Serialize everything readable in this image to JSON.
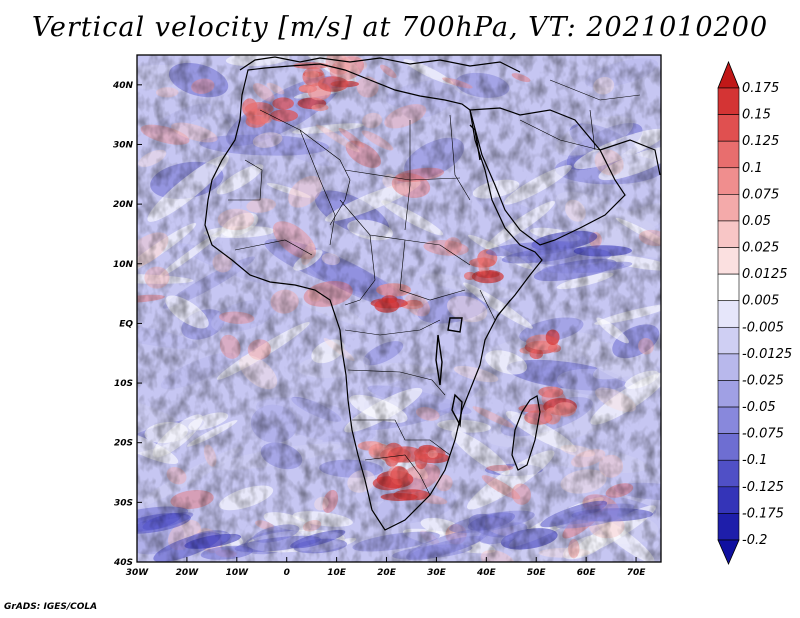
{
  "title": "Vertical velocity [m/s] at 700hPa, VT: 2021010200",
  "footer": "GrADS: IGES/COLA",
  "axes": {
    "lon_labels": [
      "30W",
      "20W",
      "10W",
      "0",
      "10E",
      "20E",
      "30E",
      "40E",
      "50E",
      "60E",
      "70E"
    ],
    "lat_labels": [
      "40N",
      "30N",
      "20N",
      "10N",
      "EQ",
      "10S",
      "20S",
      "30S",
      "40S"
    ],
    "lon_range": [
      -30,
      75
    ],
    "lat_range": [
      -40,
      45
    ]
  },
  "colorbar": {
    "labels": [
      "0.175",
      "0.15",
      "0.125",
      "0.1",
      "0.075",
      "0.05",
      "0.025",
      "0.0125",
      "0.005",
      "-0.005",
      "-0.0125",
      "-0.025",
      "-0.05",
      "-0.075",
      "-0.1",
      "-0.125",
      "-0.175",
      "-0.2"
    ],
    "colors": [
      "#c01818",
      "#d43434",
      "#e05050",
      "#e86e6e",
      "#f08e8e",
      "#f4aaaa",
      "#f8c6c6",
      "#fbe0e0",
      "#ffffff",
      "#e6e6fa",
      "#cfcff3",
      "#b8b8ec",
      "#a0a0e4",
      "#8888dc",
      "#6e6ed2",
      "#5050c6",
      "#3434b8",
      "#1e1eaa",
      "#1010a0"
    ]
  }
}
